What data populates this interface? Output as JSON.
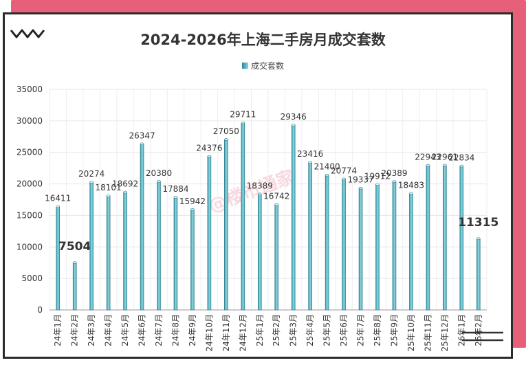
{
  "chart_data": {
    "type": "bar",
    "title": "2024-2026年上海二手房月成交套数",
    "legend": "成交套数",
    "categories": [
      "24年1月",
      "24年2月",
      "24年3月",
      "24年4月",
      "24年5月",
      "24年6月",
      "24年7月",
      "24年8月",
      "24年9月",
      "24年10月",
      "24年11月",
      "24年12月",
      "25年1月",
      "25年2月",
      "25年3月",
      "25年4月",
      "25年5月",
      "25年6月",
      "25年7月",
      "25年8月",
      "25年9月",
      "25年10月",
      "25年11月",
      "25年12月",
      "26年1月",
      "26年2月"
    ],
    "values": [
      16411,
      7504,
      20274,
      18101,
      18692,
      26347,
      20380,
      17884,
      15942,
      24376,
      27050,
      29711,
      18389,
      16742,
      29346,
      23416,
      21400,
      20774,
      19337,
      19912,
      20389,
      18483,
      22943,
      22961,
      22834,
      11315
    ],
    "highlighted": [
      "7504",
      "11315"
    ],
    "yticks": [
      "0",
      "5000",
      "10000",
      "15000",
      "20000",
      "25000",
      "30000",
      "35000"
    ],
    "ylim": [
      0,
      35000
    ],
    "highlight_color": "#e00000",
    "bar_color": "#5bbccb",
    "watermark": "@楼市通家"
  }
}
